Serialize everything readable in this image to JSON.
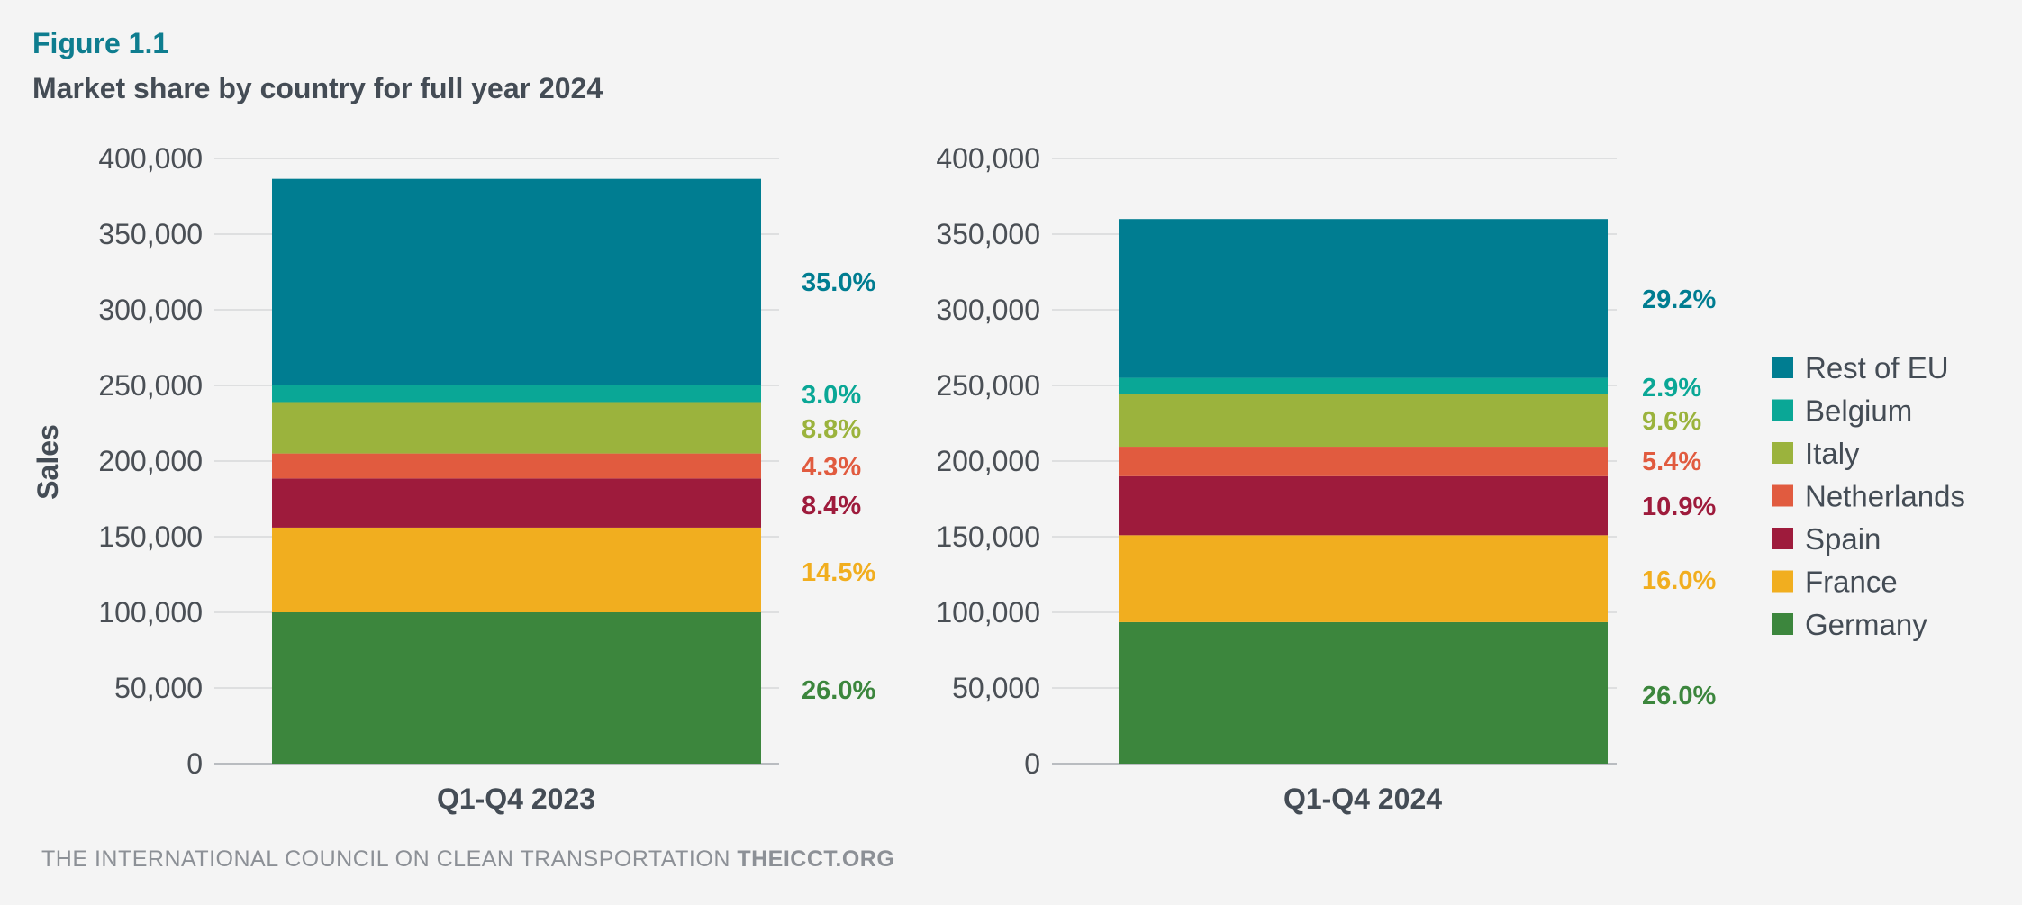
{
  "figure_label": "Figure 1.1",
  "title": "Market share by country for full year 2024",
  "footer": {
    "org": "THE INTERNATIONAL COUNCIL ON CLEAN TRANSPORTATION",
    "site": "THEICCT.ORG"
  },
  "chart_data": {
    "type": "bar",
    "stacked": true,
    "ylabel": "Sales",
    "ylim": [
      0,
      400000
    ],
    "yticks": [
      0,
      50000,
      100000,
      150000,
      200000,
      250000,
      300000,
      350000,
      400000
    ],
    "ytick_labels": [
      "0",
      "50,000",
      "100,000",
      "150,000",
      "200,000",
      "250,000",
      "300,000",
      "350,000",
      "400,000"
    ],
    "grid": true,
    "legend_position": "right",
    "categories": [
      "Q1-Q4 2023",
      "Q1-Q4 2024"
    ],
    "series": [
      {
        "name": "Germany",
        "color": "#3c863d",
        "values": [
          100000,
          93500
        ],
        "labels": [
          "26.0%",
          "26.0%"
        ]
      },
      {
        "name": "France",
        "color": "#f1ae1f",
        "values": [
          56000,
          57500
        ],
        "labels": [
          "14.5%",
          "16.0%"
        ]
      },
      {
        "name": "Spain",
        "color": "#9e1b3c",
        "values": [
          32500,
          39000
        ],
        "labels": [
          "8.4%",
          "10.9%"
        ]
      },
      {
        "name": "Netherlands",
        "color": "#e15b3f",
        "values": [
          16500,
          19500
        ],
        "labels": [
          "4.3%",
          "5.4%"
        ]
      },
      {
        "name": "Italy",
        "color": "#9bb33d",
        "values": [
          34000,
          35000
        ],
        "labels": [
          "8.8%",
          "9.6%"
        ]
      },
      {
        "name": "Belgium",
        "color": "#0aa796",
        "values": [
          11500,
          10500
        ],
        "labels": [
          "3.0%",
          "2.9%"
        ]
      },
      {
        "name": "Rest of EU",
        "color": "#007d91",
        "values": [
          136000,
          105000
        ],
        "labels": [
          "35.0%",
          "29.2%"
        ]
      }
    ]
  }
}
